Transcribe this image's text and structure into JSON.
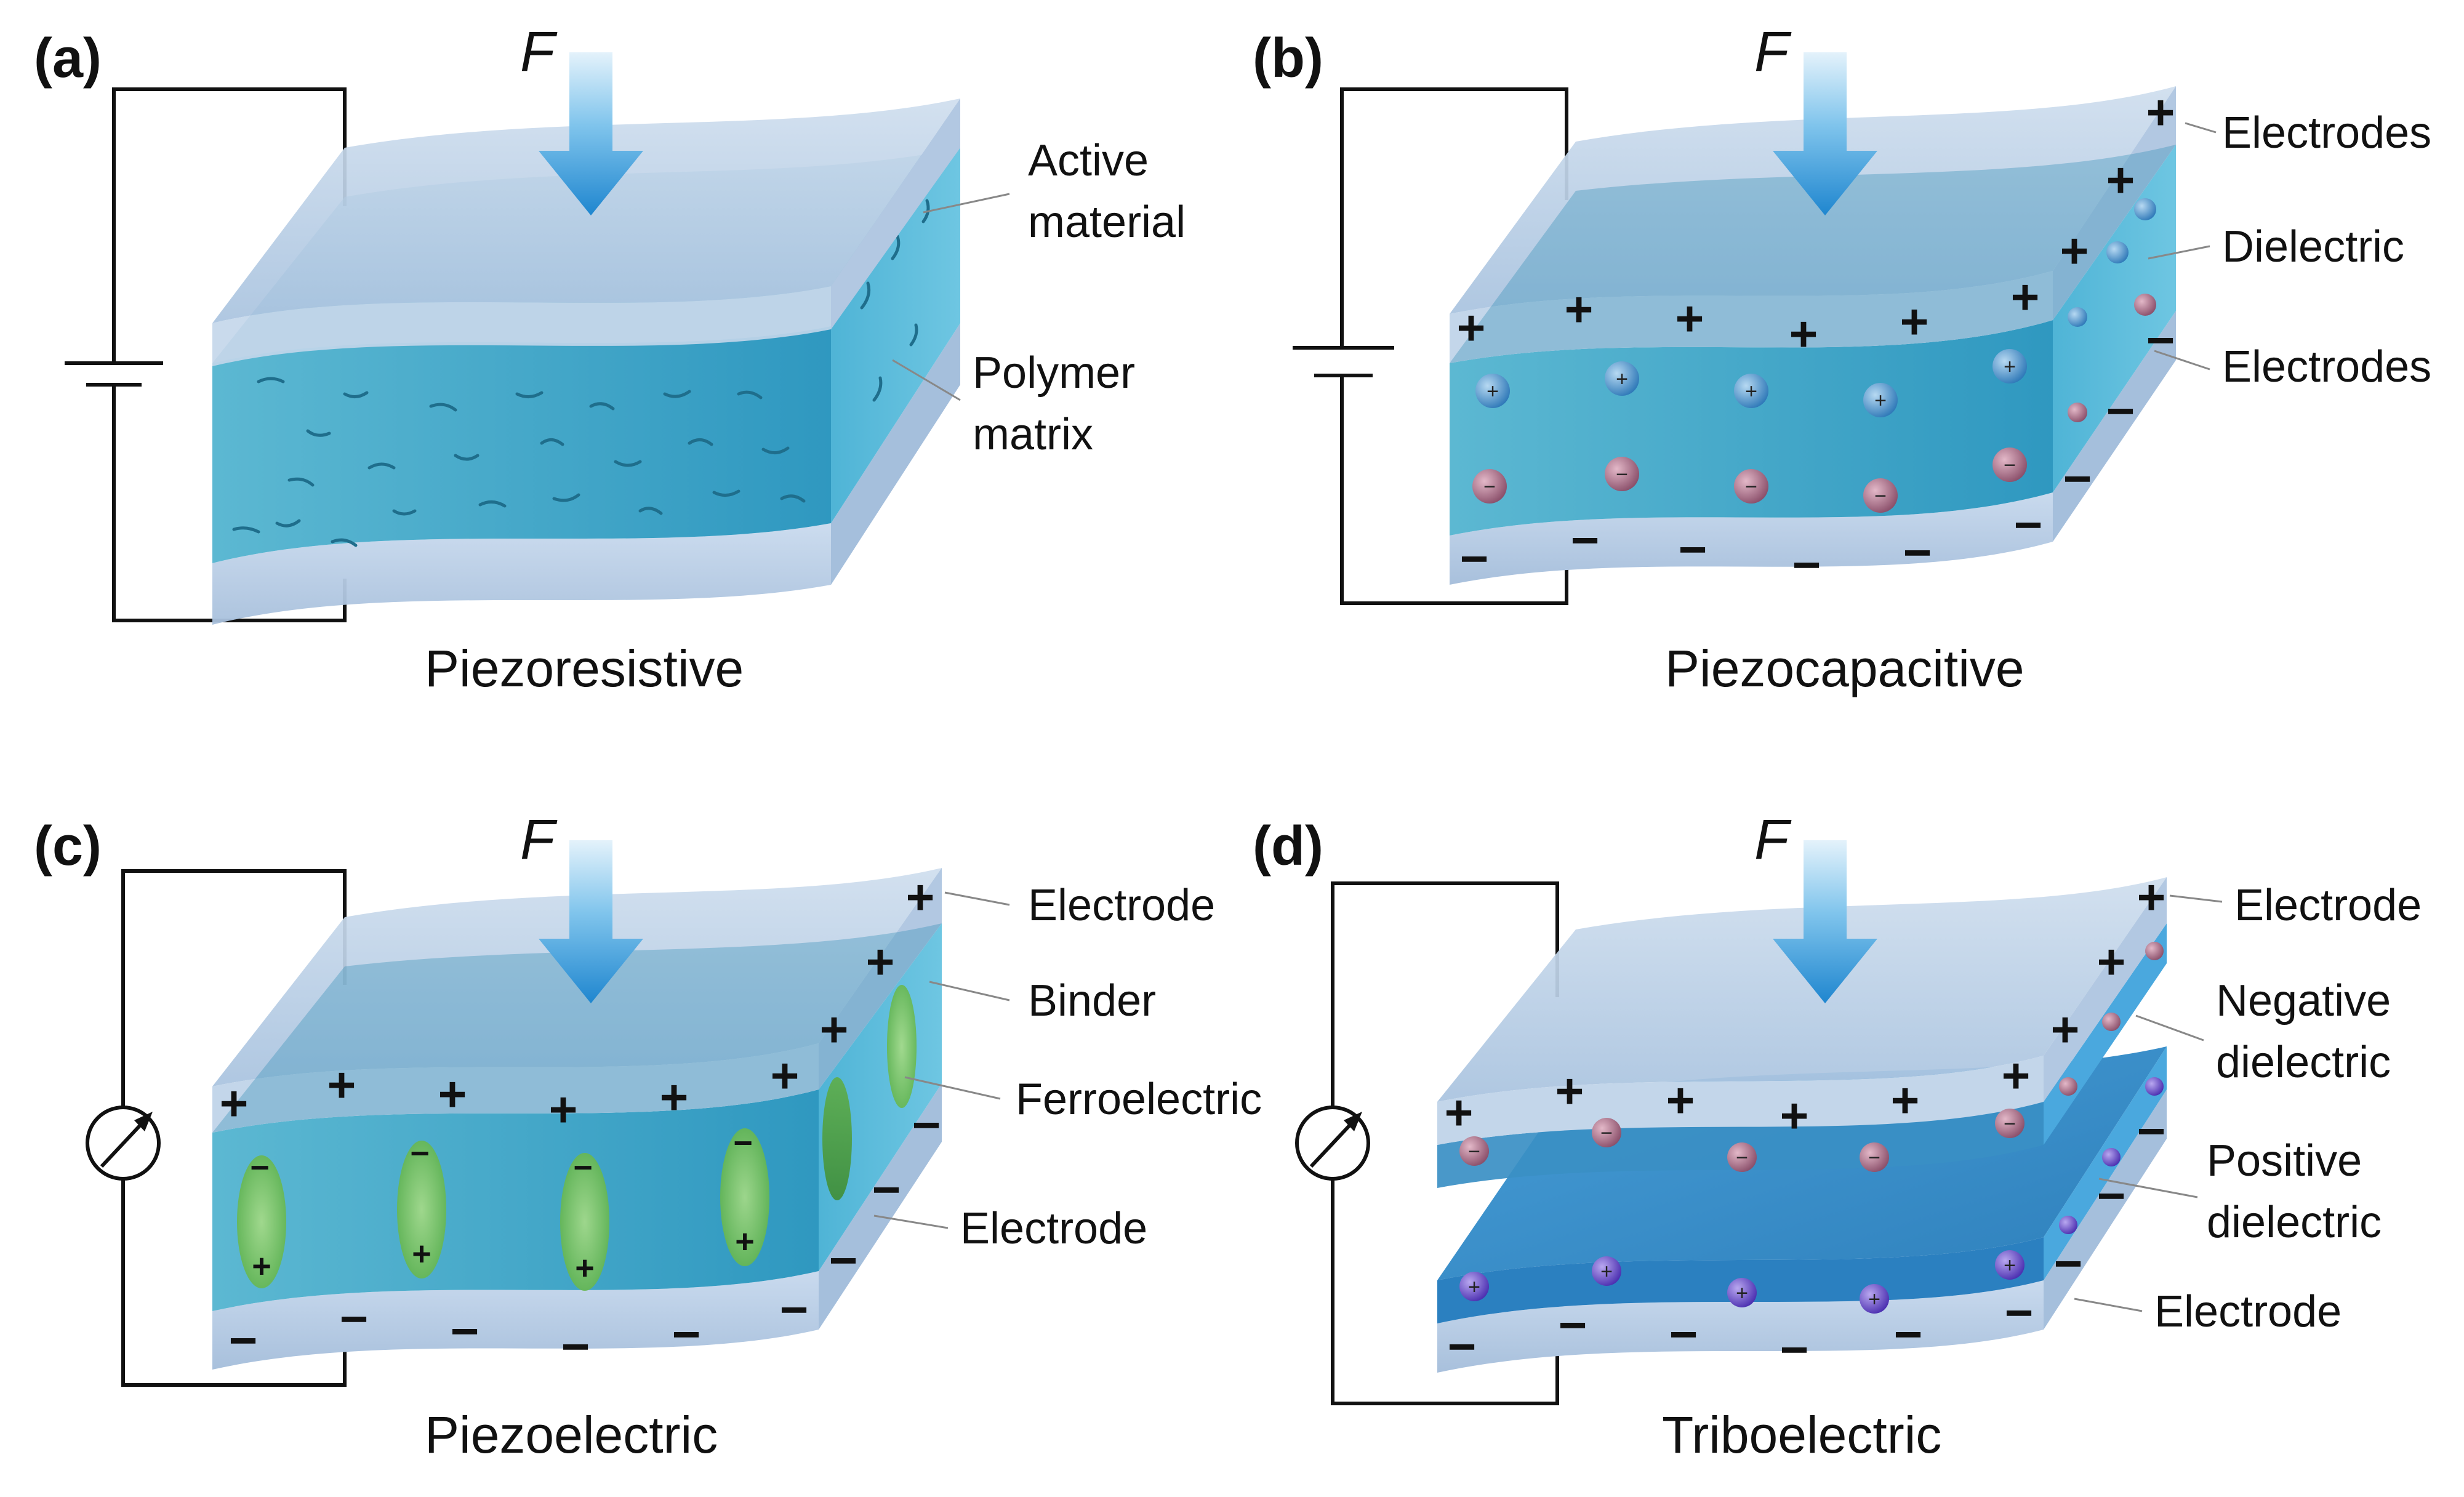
{
  "force_symbol": "F",
  "colors": {
    "electrode": "#b5cbe4",
    "active": "#3aa6c8",
    "arrow": "#2a8fd0",
    "positive_dielectric": "#2a88c8",
    "ferroelectric": "#7cc85a",
    "wire": "#111111"
  },
  "panels": {
    "a": {
      "label": "(a)",
      "caption": "Piezoresistive",
      "source": "battery",
      "annotations": [
        "Active",
        "material",
        "Polymer",
        "matrix"
      ]
    },
    "b": {
      "label": "(b)",
      "caption": "Piezocapacitive",
      "source": "battery",
      "annotations": [
        "Electrodes",
        "Dielectric",
        "Electrodes"
      ]
    },
    "c": {
      "label": "(c)",
      "caption": "Piezoelectric",
      "source": "meter",
      "annotations": [
        "Electrode",
        "Binder",
        "Ferroelectric",
        "Electrode"
      ]
    },
    "d": {
      "label": "(d)",
      "caption": "Triboelectric",
      "source": "meter",
      "annotations": [
        "Electrode",
        "Negative",
        "dielectric",
        "Positive",
        "dielectric",
        "Electrode"
      ]
    }
  },
  "symbols": {
    "plus": "+",
    "minus": "−"
  }
}
